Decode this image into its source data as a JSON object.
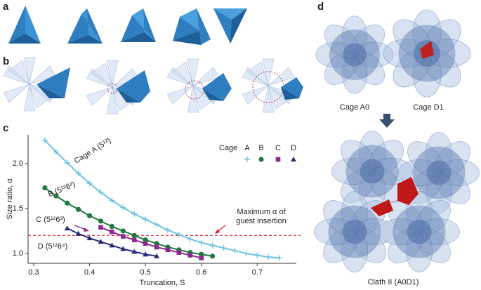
{
  "panel_labels": [
    "a",
    "b",
    "c",
    "d"
  ],
  "cage_labels": [
    "Cage A0",
    "Cage D1"
  ],
  "clathrate_label": "Clath II (A0D1)",
  "chart_data": {
    "type": "line",
    "xlabel": "Truncation, S",
    "ylabel": "Size ratio, α",
    "xlim": [
      0.29,
      0.77
    ],
    "ylim": [
      0.89,
      2.32
    ],
    "xticks": [
      0.3,
      0.4,
      0.5,
      0.6,
      0.7
    ],
    "yticks": [
      {
        "value": 1,
        "label": "1.0"
      },
      1.5,
      {
        "value": 2,
        "label": "2.0"
      }
    ],
    "legend_title": "Cage",
    "series": [
      {
        "name": "A",
        "label": "Cage A (5¹²)",
        "color": "#6cc3e6",
        "marker": "plus",
        "x": [
          0.32,
          0.34,
          0.36,
          0.38,
          0.4,
          0.42,
          0.44,
          0.46,
          0.48,
          0.5,
          0.52,
          0.54,
          0.56,
          0.58,
          0.6,
          0.62,
          0.64,
          0.66,
          0.68,
          0.7,
          0.72,
          0.74
        ],
        "values": [
          2.26,
          2.13,
          2.01,
          1.89,
          1.78,
          1.68,
          1.59,
          1.51,
          1.44,
          1.38,
          1.32,
          1.26,
          1.21,
          1.16,
          1.12,
          1.09,
          1.06,
          1.03,
          1.0,
          0.98,
          0.96,
          0.95
        ]
      },
      {
        "name": "B",
        "label": "B (5¹²6²)",
        "color": "#1f7a3c",
        "marker": "circle",
        "x": [
          0.32,
          0.34,
          0.36,
          0.38,
          0.4,
          0.42,
          0.44,
          0.46,
          0.48,
          0.5,
          0.52,
          0.54,
          0.56,
          0.58,
          0.6,
          0.62
        ],
        "values": [
          1.73,
          1.64,
          1.56,
          1.49,
          1.42,
          1.36,
          1.3,
          1.25,
          1.2,
          1.15,
          1.11,
          1.07,
          1.04,
          1.01,
          0.99,
          0.97
        ]
      },
      {
        "name": "C",
        "label": "C (5¹²6³)",
        "color": "#8e2a8e",
        "marker": "square",
        "x": [
          0.42,
          0.44,
          0.46,
          0.48,
          0.5,
          0.52,
          0.54,
          0.56,
          0.58,
          0.6
        ],
        "values": [
          1.29,
          1.24,
          1.19,
          1.15,
          1.11,
          1.07,
          1.04,
          1.01,
          0.98,
          0.95
        ]
      },
      {
        "name": "D",
        "label": "D (5¹²6⁴)",
        "color": "#272a78",
        "marker": "triangle",
        "x": [
          0.36,
          0.38,
          0.4,
          0.42,
          0.44,
          0.46,
          0.48,
          0.5,
          0.52
        ],
        "values": [
          1.28,
          1.22,
          1.17,
          1.13,
          1.09,
          1.05,
          1.02,
          0.99,
          0.97
        ]
      }
    ],
    "threshold": {
      "value": 1.2,
      "color": "#e0202a",
      "label": [
        "Maximum α of",
        "guest insertion"
      ]
    }
  }
}
